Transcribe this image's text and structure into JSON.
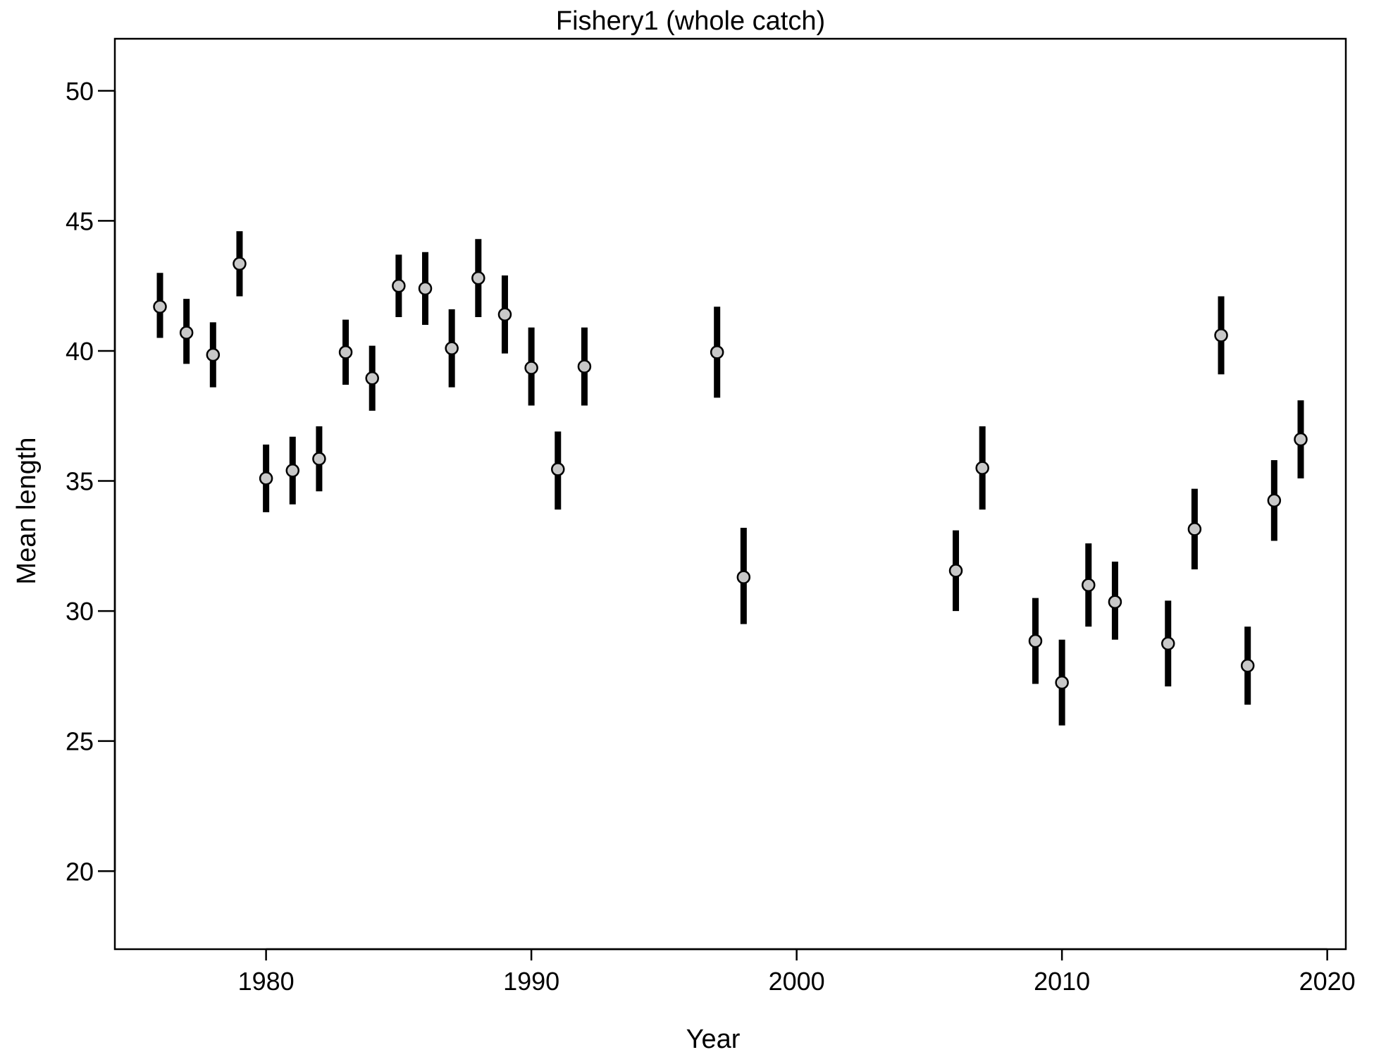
{
  "chart_data": {
    "type": "scatter",
    "title": "Fishery1 (whole catch)",
    "xlabel": "Year",
    "ylabel": "Mean length",
    "xlim": [
      1974.3,
      2020.7
    ],
    "ylim": [
      17,
      52
    ],
    "xticks": [
      "1980",
      "1990",
      "2000",
      "2010",
      "2020"
    ],
    "yticks": [
      "20",
      "25",
      "30",
      "35",
      "40",
      "45",
      "50"
    ],
    "grid": false,
    "legend": "none",
    "point_color": "#c8c8c8",
    "bar_color": "#000000",
    "points": [
      {
        "x": 1976,
        "y": 41.7,
        "lo": 40.5,
        "hi": 43.0
      },
      {
        "x": 1977,
        "y": 40.7,
        "lo": 39.5,
        "hi": 42.0
      },
      {
        "x": 1978,
        "y": 39.85,
        "lo": 38.6,
        "hi": 41.1
      },
      {
        "x": 1979,
        "y": 43.35,
        "lo": 42.1,
        "hi": 44.6
      },
      {
        "x": 1980,
        "y": 35.1,
        "lo": 33.8,
        "hi": 36.4
      },
      {
        "x": 1981,
        "y": 35.4,
        "lo": 34.1,
        "hi": 36.7
      },
      {
        "x": 1982,
        "y": 35.85,
        "lo": 34.6,
        "hi": 37.1
      },
      {
        "x": 1983,
        "y": 39.95,
        "lo": 38.7,
        "hi": 41.2
      },
      {
        "x": 1984,
        "y": 38.95,
        "lo": 37.7,
        "hi": 40.2
      },
      {
        "x": 1985,
        "y": 42.5,
        "lo": 41.3,
        "hi": 43.7
      },
      {
        "x": 1986,
        "y": 42.4,
        "lo": 41.0,
        "hi": 43.8
      },
      {
        "x": 1987,
        "y": 40.1,
        "lo": 38.6,
        "hi": 41.6
      },
      {
        "x": 1988,
        "y": 42.8,
        "lo": 41.3,
        "hi": 44.3
      },
      {
        "x": 1989,
        "y": 41.4,
        "lo": 39.9,
        "hi": 42.9
      },
      {
        "x": 1990,
        "y": 39.35,
        "lo": 37.9,
        "hi": 40.9
      },
      {
        "x": 1991,
        "y": 35.45,
        "lo": 33.9,
        "hi": 36.9
      },
      {
        "x": 1992,
        "y": 39.4,
        "lo": 37.9,
        "hi": 40.9
      },
      {
        "x": 1997,
        "y": 39.95,
        "lo": 38.2,
        "hi": 41.7
      },
      {
        "x": 1998,
        "y": 31.3,
        "lo": 29.5,
        "hi": 33.2
      },
      {
        "x": 2006,
        "y": 31.55,
        "lo": 30.0,
        "hi": 33.1
      },
      {
        "x": 2007,
        "y": 35.5,
        "lo": 33.9,
        "hi": 37.1
      },
      {
        "x": 2009,
        "y": 28.85,
        "lo": 27.2,
        "hi": 30.5
      },
      {
        "x": 2010,
        "y": 27.25,
        "lo": 25.6,
        "hi": 28.9
      },
      {
        "x": 2011,
        "y": 31.0,
        "lo": 29.4,
        "hi": 32.6
      },
      {
        "x": 2012,
        "y": 30.35,
        "lo": 28.9,
        "hi": 31.9
      },
      {
        "x": 2014,
        "y": 28.75,
        "lo": 27.1,
        "hi": 30.4
      },
      {
        "x": 2015,
        "y": 33.15,
        "lo": 31.6,
        "hi": 34.7
      },
      {
        "x": 2016,
        "y": 40.6,
        "lo": 39.1,
        "hi": 42.1
      },
      {
        "x": 2017,
        "y": 27.9,
        "lo": 26.4,
        "hi": 29.4
      },
      {
        "x": 2018,
        "y": 34.25,
        "lo": 32.7,
        "hi": 35.8
      },
      {
        "x": 2019,
        "y": 36.6,
        "lo": 35.1,
        "hi": 38.1
      }
    ]
  }
}
